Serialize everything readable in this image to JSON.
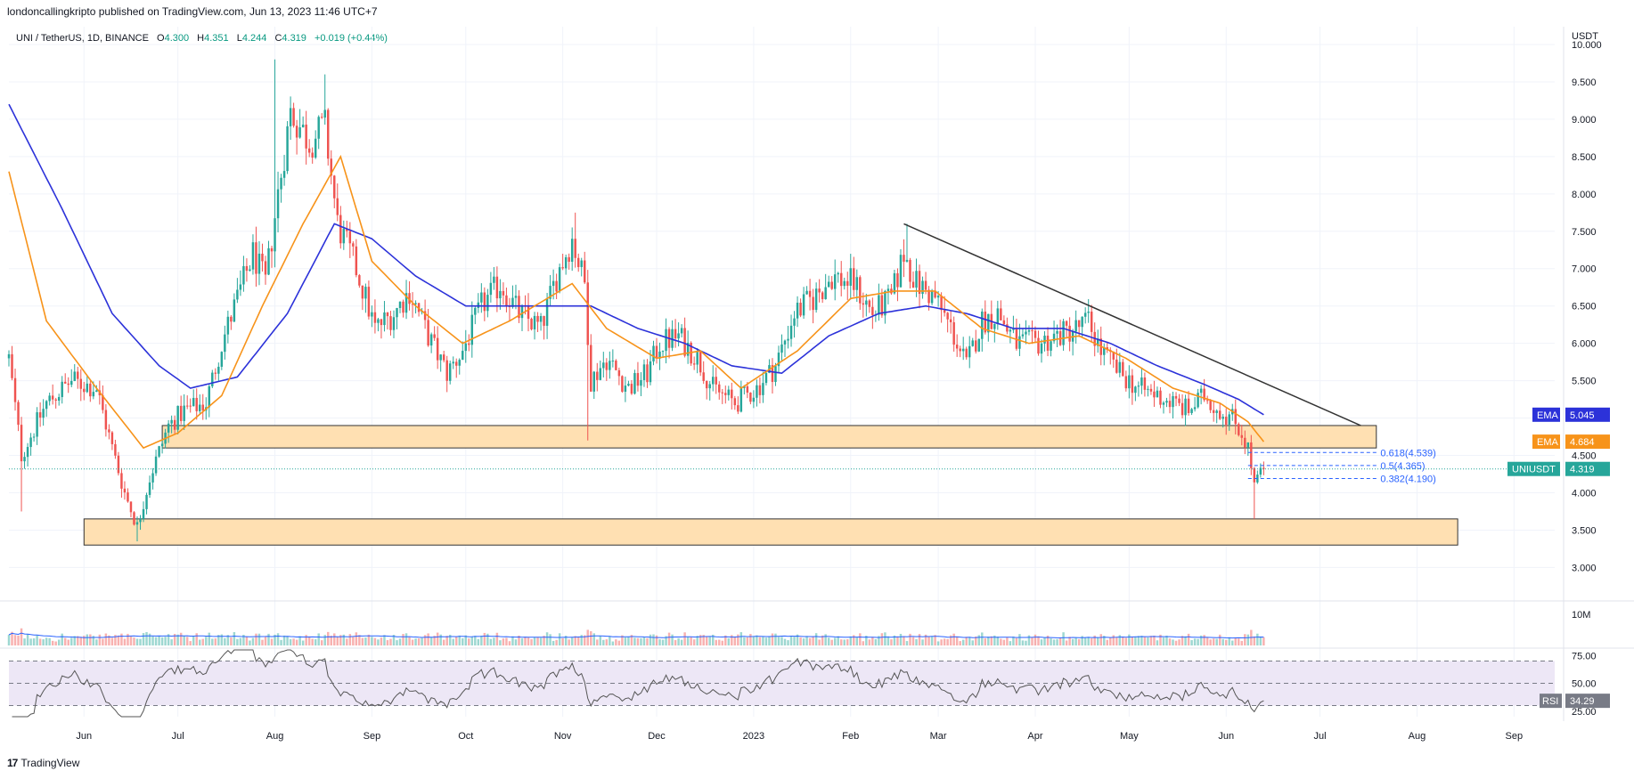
{
  "header": {
    "published": "londoncallingkripto published on TradingView.com, Jun 13, 2023 11:46 UTC+7"
  },
  "footer": {
    "brand": "TradingView",
    "logo_glyph": "17"
  },
  "colors": {
    "up": "#26a69a",
    "down": "#ef5350",
    "ema_fast": "#f7931a",
    "ema_slow": "#2c32d9",
    "zone_fill": "#ffe0b2",
    "zone_stroke": "#333333",
    "trend": "#333333",
    "fib": "#2962ff",
    "rsi_line": "#555555",
    "rsi_band": "#ede7f6",
    "volume": "#e57373"
  },
  "chart_data": {
    "type": "candlestick",
    "symbol": {
      "name": "UNI / TetherUS, 1D, BINANCE",
      "o_label": "O",
      "o": "4.300",
      "h_label": "H",
      "h": "4.351",
      "l_label": "L",
      "l": "4.244",
      "c_label": "C",
      "c": "4.319",
      "change": "+0.019 (+0.44%)"
    },
    "y_axis": {
      "unit": "USDT",
      "ticks": [
        "10.000",
        "9.500",
        "9.000",
        "8.500",
        "8.000",
        "7.500",
        "7.000",
        "6.500",
        "6.000",
        "5.500",
        "5.000",
        "4.500",
        "4.000",
        "3.500",
        "3.000"
      ],
      "ylim": [
        2.85,
        10.0
      ]
    },
    "x_axis": {
      "start": "2022-05-08",
      "end": "2023-09-14",
      "labels": [
        {
          "text": "Jun",
          "date": "2022-06-01"
        },
        {
          "text": "Jul",
          "date": "2022-07-01"
        },
        {
          "text": "Aug",
          "date": "2022-08-01"
        },
        {
          "text": "Sep",
          "date": "2022-09-01"
        },
        {
          "text": "Oct",
          "date": "2022-10-01"
        },
        {
          "text": "Nov",
          "date": "2022-11-01"
        },
        {
          "text": "Dec",
          "date": "2022-12-01"
        },
        {
          "text": "2023",
          "date": "2023-01-01"
        },
        {
          "text": "Feb",
          "date": "2023-02-01"
        },
        {
          "text": "Mar",
          "date": "2023-03-01"
        },
        {
          "text": "Apr",
          "date": "2023-04-01"
        },
        {
          "text": "May",
          "date": "2023-05-01"
        },
        {
          "text": "Jun",
          "date": "2023-06-01"
        },
        {
          "text": "Jul",
          "date": "2023-07-01"
        },
        {
          "text": "Aug",
          "date": "2023-08-01"
        },
        {
          "text": "Sep",
          "date": "2023-09-01"
        }
      ]
    },
    "close_anchors": [
      [
        "2022-05-08",
        5.8
      ],
      [
        "2022-05-12",
        4.5
      ],
      [
        "2022-05-20",
        5.2
      ],
      [
        "2022-05-28",
        5.5
      ],
      [
        "2022-06-05",
        5.4
      ],
      [
        "2022-06-10",
        4.6
      ],
      [
        "2022-06-14",
        4.0
      ],
      [
        "2022-06-18",
        3.55
      ],
      [
        "2022-06-22",
        4.2
      ],
      [
        "2022-06-28",
        4.9
      ],
      [
        "2022-07-03",
        5.1
      ],
      [
        "2022-07-10",
        5.2
      ],
      [
        "2022-07-15",
        6.0
      ],
      [
        "2022-07-20",
        6.6
      ],
      [
        "2022-07-25",
        7.2
      ],
      [
        "2022-07-29",
        6.8
      ],
      [
        "2022-08-02",
        8.0
      ],
      [
        "2022-08-06",
        9.1
      ],
      [
        "2022-08-12",
        8.7
      ],
      [
        "2022-08-17",
        8.9
      ],
      [
        "2022-08-21",
        7.6
      ],
      [
        "2022-08-27",
        7.0
      ],
      [
        "2022-09-02",
        6.2
      ],
      [
        "2022-09-08",
        6.4
      ],
      [
        "2022-09-13",
        6.7
      ],
      [
        "2022-09-19",
        6.1
      ],
      [
        "2022-09-25",
        5.6
      ],
      [
        "2022-09-30",
        5.9
      ],
      [
        "2022-10-06",
        6.5
      ],
      [
        "2022-10-12",
        6.8
      ],
      [
        "2022-10-18",
        6.4
      ],
      [
        "2022-10-25",
        6.2
      ],
      [
        "2022-10-30",
        6.9
      ],
      [
        "2022-11-04",
        7.4
      ],
      [
        "2022-11-08",
        6.8
      ],
      [
        "2022-11-10",
        5.5
      ],
      [
        "2022-11-15",
        5.8
      ],
      [
        "2022-11-22",
        5.4
      ],
      [
        "2022-11-28",
        5.6
      ],
      [
        "2022-12-02",
        6.0
      ],
      [
        "2022-12-08",
        6.1
      ],
      [
        "2022-12-14",
        5.8
      ],
      [
        "2022-12-19",
        5.4
      ],
      [
        "2022-12-26",
        5.2
      ],
      [
        "2023-01-02",
        5.4
      ],
      [
        "2023-01-08",
        5.7
      ],
      [
        "2023-01-14",
        6.4
      ],
      [
        "2023-01-20",
        6.6
      ],
      [
        "2023-01-26",
        6.9
      ],
      [
        "2023-02-02",
        6.8
      ],
      [
        "2023-02-08",
        6.4
      ],
      [
        "2023-02-14",
        6.6
      ],
      [
        "2023-02-18",
        7.2
      ],
      [
        "2023-02-22",
        6.8
      ],
      [
        "2023-02-28",
        6.6
      ],
      [
        "2023-03-05",
        6.2
      ],
      [
        "2023-03-10",
        5.7
      ],
      [
        "2023-03-15",
        6.3
      ],
      [
        "2023-03-20",
        6.4
      ],
      [
        "2023-03-26",
        6.0
      ],
      [
        "2023-04-02",
        6.0
      ],
      [
        "2023-04-08",
        6.1
      ],
      [
        "2023-04-14",
        6.2
      ],
      [
        "2023-04-18",
        6.3
      ],
      [
        "2023-04-22",
        5.9
      ],
      [
        "2023-04-28",
        5.6
      ],
      [
        "2023-05-04",
        5.4
      ],
      [
        "2023-05-10",
        5.3
      ],
      [
        "2023-05-15",
        5.2
      ],
      [
        "2023-05-20",
        5.1
      ],
      [
        "2023-05-25",
        5.3
      ],
      [
        "2023-05-30",
        5.1
      ],
      [
        "2023-06-03",
        5.0
      ],
      [
        "2023-06-06",
        4.8
      ],
      [
        "2023-06-08",
        4.6
      ],
      [
        "2023-06-10",
        4.1
      ],
      [
        "2023-06-11",
        4.15
      ],
      [
        "2023-06-12",
        4.3
      ],
      [
        "2023-06-13",
        4.319
      ]
    ],
    "ema_slow_anchors": [
      [
        "2022-05-08",
        9.2
      ],
      [
        "2022-05-25",
        7.8
      ],
      [
        "2022-06-10",
        6.4
      ],
      [
        "2022-06-25",
        5.7
      ],
      [
        "2022-07-05",
        5.4
      ],
      [
        "2022-07-20",
        5.55
      ],
      [
        "2022-08-05",
        6.4
      ],
      [
        "2022-08-20",
        7.6
      ],
      [
        "2022-09-01",
        7.4
      ],
      [
        "2022-09-15",
        6.9
      ],
      [
        "2022-10-01",
        6.5
      ],
      [
        "2022-10-15",
        6.5
      ],
      [
        "2022-11-01",
        6.5
      ],
      [
        "2022-11-10",
        6.5
      ],
      [
        "2022-11-25",
        6.2
      ],
      [
        "2022-12-10",
        6.0
      ],
      [
        "2022-12-25",
        5.7
      ],
      [
        "2023-01-10",
        5.6
      ],
      [
        "2023-01-25",
        6.1
      ],
      [
        "2023-02-10",
        6.4
      ],
      [
        "2023-02-25",
        6.5
      ],
      [
        "2023-03-10",
        6.4
      ],
      [
        "2023-03-25",
        6.2
      ],
      [
        "2023-04-10",
        6.2
      ],
      [
        "2023-04-25",
        6.0
      ],
      [
        "2023-05-10",
        5.7
      ],
      [
        "2023-05-25",
        5.45
      ],
      [
        "2023-06-05",
        5.25
      ],
      [
        "2023-06-13",
        5.045
      ]
    ],
    "ema_fast_anchors": [
      [
        "2022-05-08",
        8.3
      ],
      [
        "2022-05-20",
        6.3
      ],
      [
        "2022-06-05",
        5.4
      ],
      [
        "2022-06-20",
        4.6
      ],
      [
        "2022-07-01",
        4.8
      ],
      [
        "2022-07-15",
        5.3
      ],
      [
        "2022-07-28",
        6.5
      ],
      [
        "2022-08-10",
        7.6
      ],
      [
        "2022-08-22",
        8.5
      ],
      [
        "2022-09-01",
        7.1
      ],
      [
        "2022-09-15",
        6.5
      ],
      [
        "2022-09-30",
        6.0
      ],
      [
        "2022-10-15",
        6.3
      ],
      [
        "2022-11-04",
        6.8
      ],
      [
        "2022-11-15",
        6.2
      ],
      [
        "2022-12-01",
        5.8
      ],
      [
        "2022-12-15",
        5.9
      ],
      [
        "2022-12-28",
        5.4
      ],
      [
        "2023-01-15",
        5.9
      ],
      [
        "2023-02-01",
        6.6
      ],
      [
        "2023-02-15",
        6.7
      ],
      [
        "2023-02-28",
        6.7
      ],
      [
        "2023-03-15",
        6.2
      ],
      [
        "2023-03-30",
        6.0
      ],
      [
        "2023-04-15",
        6.1
      ],
      [
        "2023-04-30",
        5.8
      ],
      [
        "2023-05-15",
        5.4
      ],
      [
        "2023-05-30",
        5.2
      ],
      [
        "2023-06-08",
        4.95
      ],
      [
        "2023-06-13",
        4.684
      ]
    ],
    "zones": [
      {
        "name": "upper-support-zone",
        "x0": "2022-06-26",
        "x1": "2023-07-19",
        "y0": 4.6,
        "y1": 4.9
      },
      {
        "name": "lower-support-zone",
        "x0": "2022-06-01",
        "x1": "2023-08-14",
        "y0": 3.3,
        "y1": 3.65
      }
    ],
    "trendline": {
      "x0": "2023-02-18",
      "y0": 7.6,
      "x1": "2023-07-14",
      "y1": 4.9
    },
    "fib_levels": [
      {
        "label": "0.618(4.539)",
        "value": 4.539
      },
      {
        "label": "0.5(4.365)",
        "value": 4.365
      },
      {
        "label": "0.382(4.190)",
        "value": 4.19
      }
    ],
    "fib_range": {
      "x0": "2023-06-08",
      "x1": "2023-06-15"
    },
    "value_tags": [
      {
        "label": "EMA",
        "value": "5.045",
        "y": 5.045,
        "color": "#2c32d9"
      },
      {
        "label": "EMA",
        "value": "4.684",
        "y": 4.684,
        "color": "#f7931a"
      },
      {
        "label": "UNIUSDT",
        "value": "4.319",
        "y": 4.319,
        "color": "#26a69a"
      }
    ],
    "volume": {
      "axis_label": "10M"
    },
    "rsi": {
      "label": "RSI",
      "value": "34.29",
      "ticks": [
        "75.00",
        "50.00",
        "25.00"
      ],
      "upper": 70,
      "lower": 30,
      "mid": 50,
      "ylim": [
        20,
        80
      ]
    }
  }
}
